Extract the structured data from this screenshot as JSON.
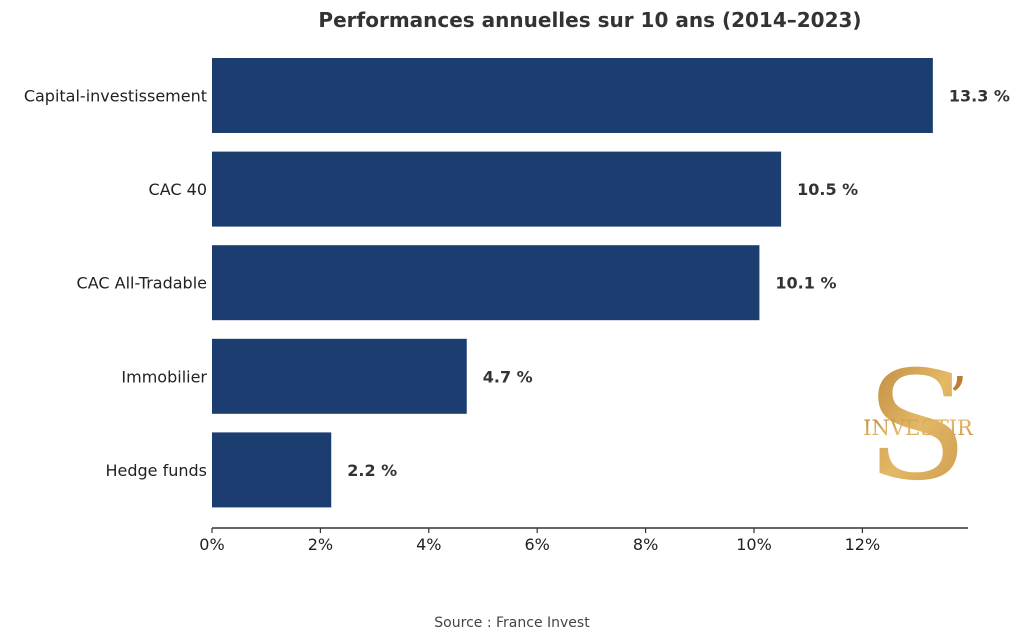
{
  "chart_data": {
    "type": "bar",
    "orientation": "horizontal",
    "title": "Performances annuelles sur 10 ans (2014–2023)",
    "categories": [
      "Capital-investissement",
      "CAC 40",
      "CAC All-Tradable",
      "Immobilier",
      "Hedge funds"
    ],
    "values": [
      13.3,
      10.5,
      10.1,
      4.7,
      2.2
    ],
    "value_labels": [
      "13.3 %",
      "10.5 %",
      "10.1 %",
      "4.7 %",
      "2.2 %"
    ],
    "xlim": [
      0,
      14
    ],
    "xticks": [
      0,
      2,
      4,
      6,
      8,
      10,
      12
    ],
    "xtick_labels": [
      "0%",
      "2%",
      "4%",
      "6%",
      "8%",
      "10%",
      "12%"
    ],
    "grid": false,
    "bar_color": "#1b3d70"
  },
  "source": "Source : France Invest",
  "logo": {
    "letter": "S",
    "apostrophe": "’",
    "text": "INVESTIR",
    "color": "#c9974a"
  }
}
